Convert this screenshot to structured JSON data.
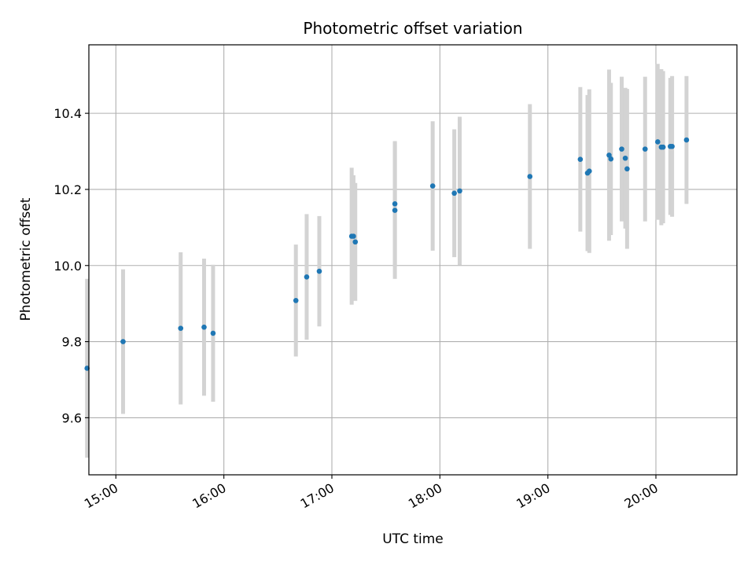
{
  "chart_data": {
    "type": "scatter",
    "title": "Photometric offset variation",
    "xlabel": "UTC time",
    "ylabel": "Photometric offset",
    "x_axis": "time",
    "xlim": [
      "14:45",
      "20:45"
    ],
    "ylim": [
      9.45,
      10.58
    ],
    "x_ticks": [
      "15:00",
      "16:00",
      "17:00",
      "18:00",
      "19:00",
      "20:00"
    ],
    "y_ticks": [
      9.6,
      9.8,
      10.0,
      10.2,
      10.4
    ],
    "y_tick_labels": [
      "9.6",
      "9.8",
      "10.0",
      "10.2",
      "10.4"
    ],
    "grid": true,
    "marker_color": "#1f77b4",
    "errorbar_color": "#d3d3d3",
    "points": [
      {
        "x": "14:44",
        "y": 9.73,
        "err": 0.235
      },
      {
        "x": "15:04",
        "y": 9.8,
        "err": 0.19
      },
      {
        "x": "15:36",
        "y": 9.835,
        "err": 0.2
      },
      {
        "x": "15:49",
        "y": 9.838,
        "err": 0.18
      },
      {
        "x": "15:54",
        "y": 9.822,
        "err": 0.18
      },
      {
        "x": "16:40",
        "y": 9.908,
        "err": 0.147
      },
      {
        "x": "16:46",
        "y": 9.97,
        "err": 0.165
      },
      {
        "x": "16:53",
        "y": 9.985,
        "err": 0.145
      },
      {
        "x": "17:11",
        "y": 10.077,
        "err": 0.18
      },
      {
        "x": "17:12",
        "y": 10.077,
        "err": 0.16
      },
      {
        "x": "17:13",
        "y": 10.062,
        "err": 0.155
      },
      {
        "x": "17:35",
        "y": 10.145,
        "err": 0.18
      },
      {
        "x": "17:35",
        "y": 10.162,
        "err": 0.165
      },
      {
        "x": "17:56",
        "y": 10.209,
        "err": 0.17
      },
      {
        "x": "18:08",
        "y": 10.19,
        "err": 0.168
      },
      {
        "x": "18:11",
        "y": 10.196,
        "err": 0.195
      },
      {
        "x": "18:50",
        "y": 10.234,
        "err": 0.19
      },
      {
        "x": "19:18",
        "y": 10.279,
        "err": 0.19
      },
      {
        "x": "19:22",
        "y": 10.243,
        "err": 0.205
      },
      {
        "x": "19:23",
        "y": 10.248,
        "err": 0.215
      },
      {
        "x": "19:34",
        "y": 10.29,
        "err": 0.225
      },
      {
        "x": "19:35",
        "y": 10.28,
        "err": 0.2
      },
      {
        "x": "19:41",
        "y": 10.306,
        "err": 0.19
      },
      {
        "x": "19:43",
        "y": 10.282,
        "err": 0.185
      },
      {
        "x": "19:44",
        "y": 10.254,
        "err": 0.21
      },
      {
        "x": "19:54",
        "y": 10.306,
        "err": 0.19
      },
      {
        "x": "20:01",
        "y": 10.325,
        "err": 0.205
      },
      {
        "x": "20:03",
        "y": 10.311,
        "err": 0.205
      },
      {
        "x": "20:04",
        "y": 10.311,
        "err": 0.2
      },
      {
        "x": "20:08",
        "y": 10.313,
        "err": 0.18
      },
      {
        "x": "20:09",
        "y": 10.313,
        "err": 0.185
      },
      {
        "x": "20:17",
        "y": 10.33,
        "err": 0.168
      }
    ]
  }
}
